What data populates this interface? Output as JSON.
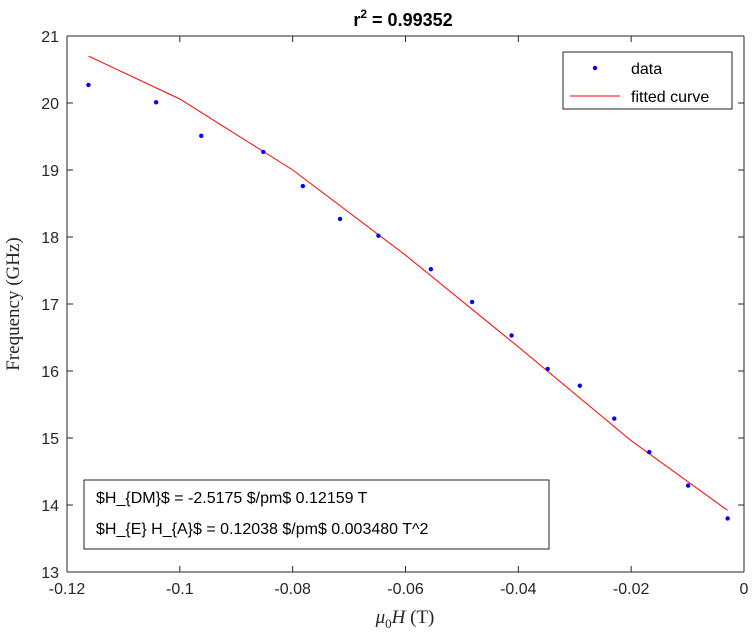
{
  "chart_data": {
    "type": "scatter",
    "title_prefix": "r",
    "title_sup": "2",
    "title_suffix": " = 0.99352",
    "xlabel": "μ0H (T)",
    "xlabel_parts": {
      "mu": "μ",
      "sub": "0",
      "h": "H",
      "unit": " (T)"
    },
    "ylabel": "Frequency (GHz)",
    "xlim": [
      -0.12,
      0
    ],
    "ylim": [
      13,
      21
    ],
    "xticks": [
      -0.12,
      -0.1,
      -0.08,
      -0.06,
      -0.04,
      -0.02,
      0
    ],
    "xtick_labels": [
      "-0.12",
      "-0.1",
      "-0.08",
      "-0.06",
      "-0.04",
      "-0.02",
      "0"
    ],
    "yticks": [
      13,
      14,
      15,
      16,
      17,
      18,
      19,
      20,
      21
    ],
    "ytick_labels": [
      "13",
      "14",
      "15",
      "16",
      "17",
      "18",
      "19",
      "20",
      "21"
    ],
    "grid": false,
    "legend_position": "top-right",
    "series": [
      {
        "name": "data",
        "kind": "points",
        "color": "#0000ff",
        "x": [
          -0.1162,
          -0.1042,
          -0.0962,
          -0.0852,
          -0.0782,
          -0.0716,
          -0.0648,
          -0.0555,
          -0.0482,
          -0.0412,
          -0.0348,
          -0.0291,
          -0.023,
          -0.0168,
          -0.0099,
          -0.0029
        ],
        "y": [
          20.27,
          20.01,
          19.51,
          19.27,
          18.76,
          18.27,
          18.02,
          17.52,
          17.03,
          16.53,
          16.03,
          15.78,
          15.29,
          14.79,
          14.29,
          13.8
        ]
      },
      {
        "name": "fitted curve",
        "kind": "line",
        "color": "#ff0000",
        "x": [
          -0.1162,
          -0.1,
          -0.08,
          -0.06,
          -0.04,
          -0.02,
          -0.0029
        ],
        "y": [
          20.7,
          20.06,
          19.0,
          17.73,
          16.36,
          14.96,
          13.92
        ]
      }
    ],
    "annotation_lines": [
      "$H_{DM}$ = -2.5175 $/pm$ 0.12159 T",
      "$H_{E} H_{A}$ = 0.12038 $/pm$ 0.003480 T^2"
    ]
  }
}
